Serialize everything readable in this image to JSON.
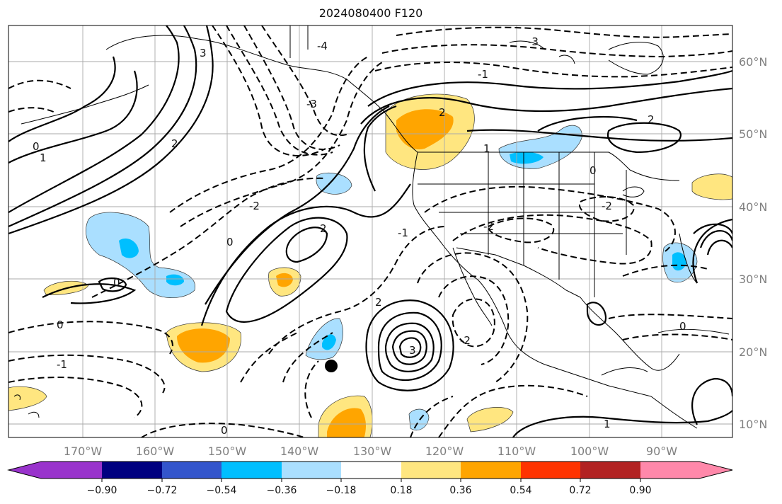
{
  "title": "2024080400 F120",
  "map": {
    "lon_labels": [
      "170°W",
      "160°W",
      "150°W",
      "140°W",
      "130°W",
      "120°W",
      "110°W",
      "100°W",
      "90°W"
    ],
    "lat_labels": [
      "60°N",
      "50°N",
      "40°N",
      "30°N",
      "20°N",
      "10°N"
    ],
    "contour_labels": [
      "-4",
      "-3",
      "-3",
      "-2",
      "-2",
      "-2",
      "-2",
      "-1",
      "-1",
      "-1",
      "0",
      "0",
      "0",
      "0",
      "0",
      "0",
      "0",
      "1",
      "1",
      "1",
      "2",
      "2",
      "2",
      "2",
      "2",
      "3",
      "3"
    ],
    "marker": "storm position"
  },
  "colorbar": {
    "ticks": [
      "−0.90",
      "−0.72",
      "−0.54",
      "−0.36",
      "−0.18",
      "0.18",
      "0.36",
      "0.54",
      "0.72",
      "0.90"
    ],
    "colors": [
      "#9933cc",
      "#000080",
      "#3355cc",
      "#00bfff",
      "#aadfff",
      "#ffffff",
      "#ffe680",
      "#ffa500",
      "#ff3300",
      "#b22222",
      "#ff88aa"
    ]
  }
}
